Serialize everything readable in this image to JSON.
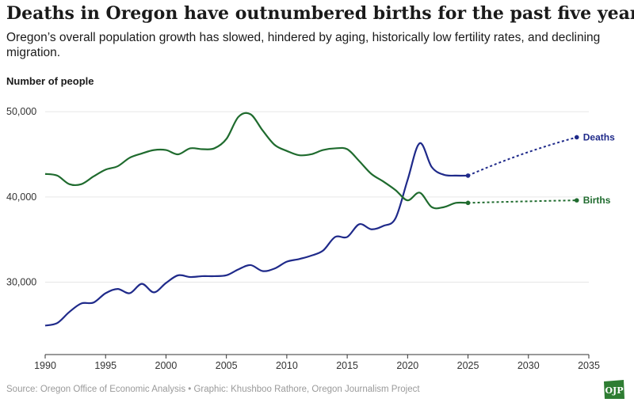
{
  "header": {
    "title": "Deaths in Oregon have outnumbered births for the past five years.",
    "subtitle": "Oregon’s overall population growth has slowed, hindered by aging, historically low fertility rates, and declining migration."
  },
  "footer": {
    "source": "Source: Oregon Office of Economic Analysis • Graphic: Khushboo Rathore, Oregon Journalism Project",
    "logo_text": "OJP"
  },
  "colors": {
    "deaths": "#1f2a8a",
    "births": "#1f6b2e",
    "grid": "#e6e6e6",
    "axis_text": "#333333",
    "logo": "#2e7d32"
  },
  "chart_data": {
    "type": "line",
    "ylabel": "Number of people",
    "xlabel": "",
    "xlim": [
      1990,
      2035
    ],
    "ylim": [
      21500,
      51500
    ],
    "xticks": [
      1990,
      1995,
      2000,
      2005,
      2010,
      2015,
      2020,
      2025,
      2030,
      2035
    ],
    "yticks": [
      30000,
      40000,
      50000
    ],
    "ytick_labels": [
      "30,000",
      "40,000",
      "50,000"
    ],
    "grid": "horizontal",
    "series": [
      {
        "name": "Deaths",
        "color": "#1f2a8a",
        "x": [
          1990,
          1991,
          1992,
          1993,
          1994,
          1995,
          1996,
          1997,
          1998,
          1999,
          2000,
          2001,
          2002,
          2003,
          2004,
          2005,
          2006,
          2007,
          2008,
          2009,
          2010,
          2011,
          2012,
          2013,
          2014,
          2015,
          2016,
          2017,
          2018,
          2019,
          2020,
          2021,
          2022,
          2023,
          2024,
          2025
        ],
        "values": [
          24900,
          25200,
          26500,
          27500,
          27600,
          28700,
          29200,
          28700,
          29800,
          28800,
          29900,
          30800,
          30600,
          30700,
          30700,
          30800,
          31500,
          32000,
          31300,
          31600,
          32400,
          32700,
          33100,
          33700,
          35300,
          35300,
          36800,
          36200,
          36600,
          37500,
          42000,
          46300,
          43500,
          42600,
          42500,
          42500
        ],
        "projection": {
          "x": [
            2025,
            2034
          ],
          "values": [
            42500,
            47000
          ]
        }
      },
      {
        "name": "Births",
        "color": "#1f6b2e",
        "x": [
          1990,
          1991,
          1992,
          1993,
          1994,
          1995,
          1996,
          1997,
          1998,
          1999,
          2000,
          2001,
          2002,
          2003,
          2004,
          2005,
          2006,
          2007,
          2008,
          2009,
          2010,
          2011,
          2012,
          2013,
          2014,
          2015,
          2016,
          2017,
          2018,
          2019,
          2020,
          2021,
          2022,
          2023,
          2024,
          2025
        ],
        "values": [
          42700,
          42500,
          41500,
          41500,
          42400,
          43200,
          43600,
          44600,
          45100,
          45500,
          45500,
          45000,
          45700,
          45600,
          45700,
          46800,
          49400,
          49700,
          47800,
          46100,
          45400,
          44900,
          45000,
          45500,
          45700,
          45600,
          44200,
          42700,
          41800,
          40800,
          39600,
          40500,
          38800,
          38800,
          39300,
          39300
        ],
        "projection": {
          "x": [
            2025,
            2034
          ],
          "values": [
            39300,
            39600
          ]
        }
      }
    ]
  }
}
